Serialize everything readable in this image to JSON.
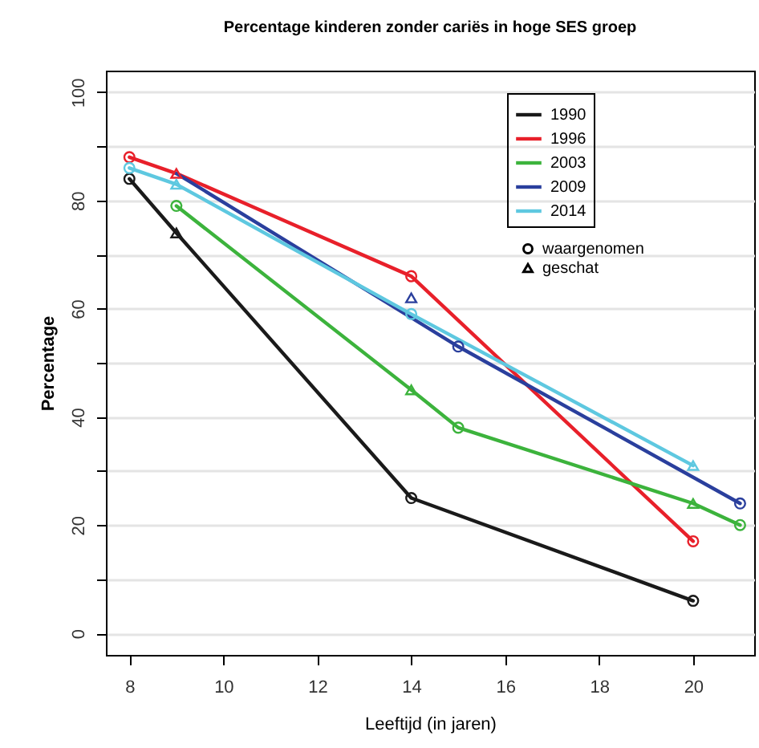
{
  "chart_data": {
    "type": "line",
    "title": "Percentage kinderen zonder cariës in hoge SES groep",
    "xlabel": "Leeftijd (in jaren)",
    "ylabel": "Percentage",
    "xlim": [
      7.5,
      21.3
    ],
    "xticks": [
      8,
      10,
      12,
      14,
      16,
      18,
      20
    ],
    "ylim": [
      -4,
      104
    ],
    "yticks": [
      0,
      {
        "value": 10,
        "label": null
      },
      20,
      {
        "value": 30,
        "label": null
      },
      40,
      {
        "value": 50,
        "label": null
      },
      60,
      {
        "value": 70,
        "label": null
      },
      80,
      {
        "value": 90,
        "label": null
      },
      100
    ],
    "grid": "y",
    "legend": "top right",
    "line_style": "solid",
    "annotations": [
      "waargenomen",
      "geschat"
    ],
    "series": [
      {
        "name": "1990",
        "type": "line",
        "marker": "none",
        "color": "#1a1a1a",
        "x": [
          8,
          9,
          14,
          20
        ],
        "values": [
          84,
          74,
          25,
          6
        ]
      },
      {
        "name": "1996",
        "type": "line",
        "marker": "none",
        "color": "#e8202a",
        "x": [
          8,
          9,
          14,
          20
        ],
        "values": [
          88,
          85,
          66,
          17
        ]
      },
      {
        "name": "2003",
        "type": "line",
        "marker": "none",
        "color": "#3cb33c",
        "x": [
          9,
          14,
          15,
          20,
          21
        ],
        "values": [
          79,
          45,
          38,
          24,
          20
        ]
      },
      {
        "name": "2009",
        "type": "line",
        "marker": "none",
        "color": "#2a3f9d",
        "x": [
          9,
          15,
          21
        ],
        "values": [
          85,
          53,
          24
        ]
      },
      {
        "name": "2014",
        "type": "line",
        "marker": "none",
        "color": "#5ec8e0",
        "x": [
          8,
          9,
          14,
          20
        ],
        "values": [
          86,
          83,
          59,
          31
        ]
      },
      {
        "type": "scatter",
        "marker": "circle",
        "x": [
          8,
          14,
          20,
          8,
          14,
          20,
          9,
          15,
          21,
          15,
          21,
          8,
          14
        ],
        "values": [
          84,
          25,
          6,
          88,
          66,
          17,
          79,
          38,
          20,
          53,
          24,
          86,
          59
        ],
        "colors": [
          "#1a1a1a",
          "#1a1a1a",
          "#1a1a1a",
          "#e8202a",
          "#e8202a",
          "#e8202a",
          "#3cb33c",
          "#3cb33c",
          "#3cb33c",
          "#2a3f9d",
          "#2a3f9d",
          "#5ec8e0",
          "#5ec8e0"
        ]
      },
      {
        "type": "scatter",
        "marker": "triangle",
        "x": [
          9,
          9,
          14,
          20,
          14,
          9,
          20
        ],
        "values": [
          74,
          85,
          45,
          24,
          62,
          83,
          31
        ],
        "colors": [
          "#1a1a1a",
          "#e8202a",
          "#3cb33c",
          "#3cb33c",
          "#2a3f9d",
          "#5ec8e0",
          "#5ec8e0"
        ]
      }
    ]
  }
}
